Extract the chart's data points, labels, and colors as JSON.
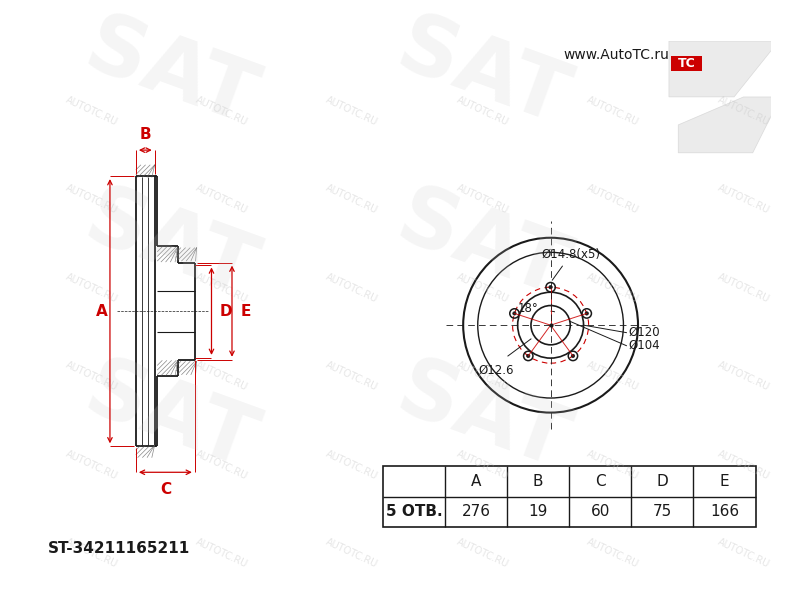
{
  "bg_color": "#ffffff",
  "line_color": "#1a1a1a",
  "red_color": "#cc0000",
  "watermark_color": "#c8c8c8",
  "part_number": "ST-34211165211",
  "holes": 5,
  "otv_label": "5 ОТВ.",
  "table_headers": [
    "A",
    "B",
    "C",
    "D",
    "E"
  ],
  "table_values": [
    "276",
    "19",
    "60",
    "75",
    "166"
  ],
  "label_A": "A",
  "label_B": "B",
  "label_C": "C",
  "label_D": "D",
  "label_E": "E",
  "annotation_bolt_circle": "Ø14.8(x5)",
  "annotation_angle": "18°",
  "annotation_d126": "Ø12.6",
  "annotation_d120": "Ø120",
  "annotation_d104": "Ø104",
  "website": "www.AutoTC.ru"
}
